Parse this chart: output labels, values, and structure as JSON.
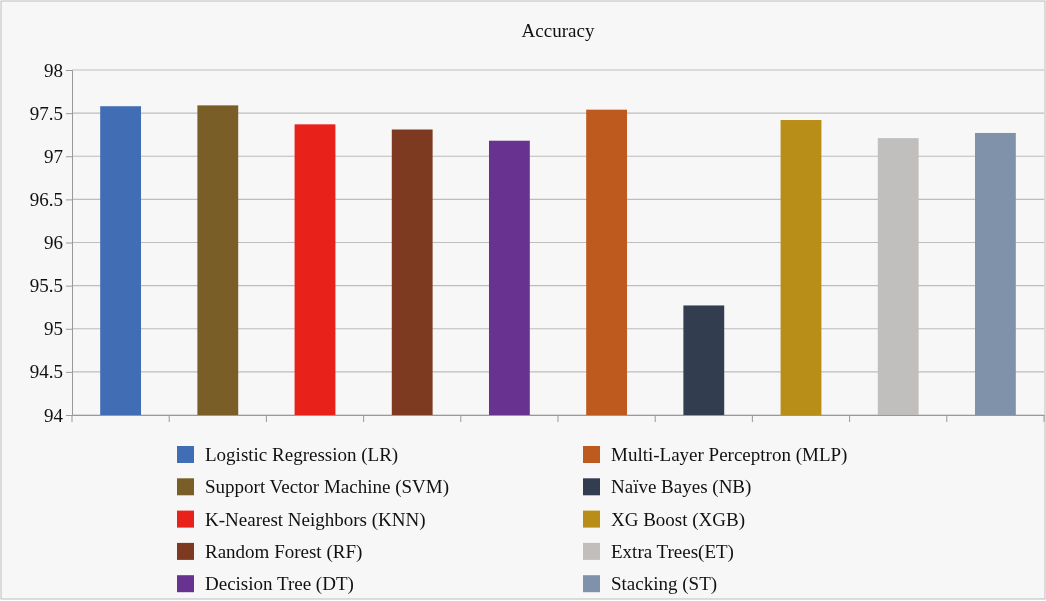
{
  "chart_data": {
    "type": "bar",
    "title": "Accuracy",
    "categories": [
      null,
      null,
      null,
      null,
      null,
      null,
      null,
      null,
      null,
      null
    ],
    "series": [
      {
        "name": "Logistic Regression (LR)",
        "color": "#416db5",
        "values": [
          97.58,
          null,
          null,
          null,
          null,
          null,
          null,
          null,
          null,
          null
        ]
      },
      {
        "name": "Support Vector Machine (SVM)",
        "color": "#7a5e28",
        "values": [
          null,
          97.59,
          null,
          null,
          null,
          null,
          null,
          null,
          null,
          null
        ]
      },
      {
        "name": "K-Nearest Neighbors (KNN)",
        "color": "#e8211b",
        "values": [
          null,
          null,
          97.37,
          null,
          null,
          null,
          null,
          null,
          null,
          null
        ]
      },
      {
        "name": "Random Forest (RF)",
        "color": "#7d3a20",
        "values": [
          null,
          null,
          null,
          97.31,
          null,
          null,
          null,
          null,
          null,
          null
        ]
      },
      {
        "name": "Decision Tree (DT)",
        "color": "#673290",
        "values": [
          null,
          null,
          null,
          null,
          97.18,
          null,
          null,
          null,
          null,
          null
        ]
      },
      {
        "name": "Multi-Layer Perceptron (MLP)",
        "color": "#bf5a1f",
        "values": [
          null,
          null,
          null,
          null,
          null,
          97.54,
          null,
          null,
          null,
          null
        ]
      },
      {
        "name": "Naïve Bayes (NB)",
        "color": "#323d50",
        "values": [
          null,
          null,
          null,
          null,
          null,
          null,
          95.27,
          null,
          null,
          null
        ]
      },
      {
        "name": "XG Boost (XGB)",
        "color": "#b98e18",
        "values": [
          null,
          null,
          null,
          null,
          null,
          null,
          null,
          97.42,
          null,
          null
        ]
      },
      {
        "name": "Extra Trees(ET)",
        "color": "#c0bfbd",
        "values": [
          null,
          null,
          null,
          null,
          null,
          null,
          null,
          null,
          97.21,
          null
        ]
      },
      {
        "name": "Stacking (ST)",
        "color": "#8091aa",
        "values": [
          null,
          null,
          null,
          null,
          null,
          null,
          null,
          null,
          null,
          97.27
        ]
      }
    ],
    "ylim": [
      94,
      98
    ],
    "yticks": [
      94,
      94.5,
      95,
      95.5,
      96,
      96.5,
      97,
      97.5,
      98
    ],
    "grid": "y",
    "legend": "bottom"
  }
}
